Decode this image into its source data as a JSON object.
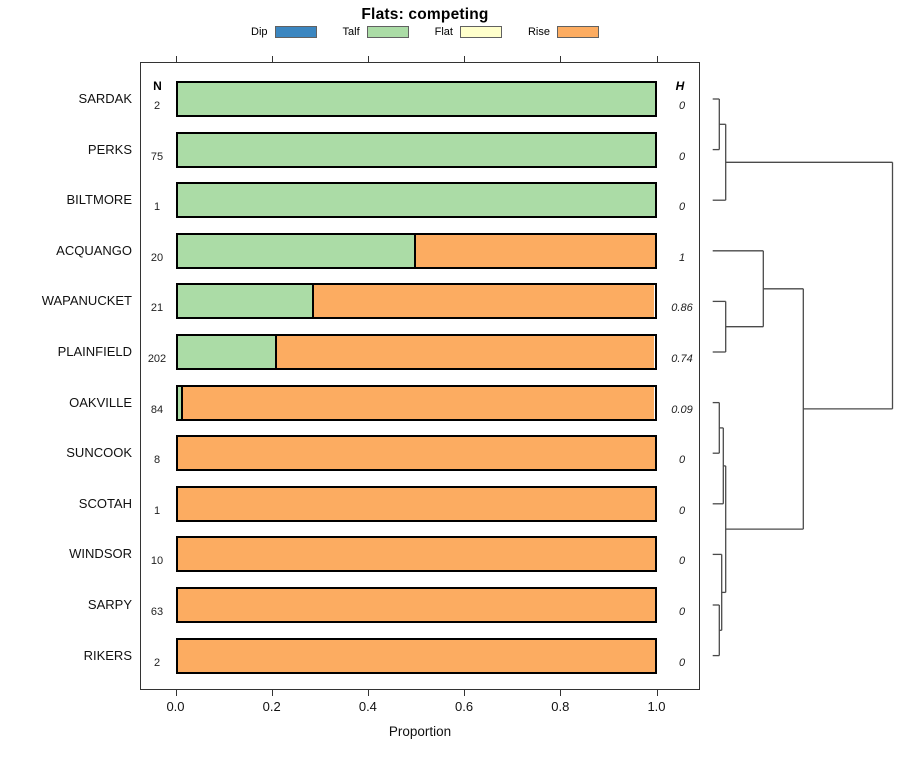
{
  "title": "Flats: competing",
  "xlabel": "Proportion",
  "columns": {
    "n": "N",
    "h": "H"
  },
  "legend": [
    {
      "label": "Dip",
      "color": "#3b86c0"
    },
    {
      "label": "Talf",
      "color": "#abdca6"
    },
    {
      "label": "Flat",
      "color": "#ffffcc"
    },
    {
      "label": "Rise",
      "color": "#fcac61"
    }
  ],
  "chart_data": {
    "type": "bar",
    "orientation": "horizontal",
    "stacked": true,
    "title": "Flats: competing",
    "xlabel": "Proportion",
    "xlim": [
      0,
      1
    ],
    "x_ticks": [
      "0.0",
      "0.2",
      "0.4",
      "0.6",
      "0.8",
      "1.0"
    ],
    "grid": false,
    "legend_position": "top",
    "categories": [
      "SARDAK",
      "PERKS",
      "BILTMORE",
      "ACQUANGO",
      "WAPANUCKET",
      "PLAINFIELD",
      "OAKVILLE",
      "SUNCOOK",
      "SCOTAH",
      "WINDSOR",
      "SARPY",
      "RIKERS"
    ],
    "N": [
      2,
      75,
      1,
      20,
      21,
      202,
      84,
      8,
      1,
      10,
      63,
      2
    ],
    "H": [
      "0",
      "0",
      "0",
      "1",
      "0.86",
      "0.74",
      "0.09",
      "0",
      "0",
      "0",
      "0",
      "0"
    ],
    "series": [
      {
        "name": "Dip",
        "color": "#3b86c0",
        "values": [
          0,
          0,
          0,
          0,
          0,
          0,
          0,
          0,
          0,
          0,
          0,
          0
        ]
      },
      {
        "name": "Talf",
        "color": "#abdca6",
        "values": [
          1,
          1,
          1,
          0.5,
          0.286,
          0.208,
          0.012,
          0,
          0,
          0,
          0,
          0
        ]
      },
      {
        "name": "Flat",
        "color": "#ffffcc",
        "values": [
          0,
          0,
          0,
          0,
          0,
          0,
          0,
          0,
          0,
          0,
          0,
          0
        ]
      },
      {
        "name": "Rise",
        "color": "#fcac61",
        "values": [
          0,
          0,
          0,
          0.5,
          0.714,
          0.792,
          0.988,
          1,
          1,
          1,
          1,
          1
        ]
      }
    ],
    "dendrogram": {
      "structure": "((SARDAK,PERKS),BILTMORE) | ((ACQUANGO,(WAPANUCKET,PLAINFIELD)),(((OAKVILLE,SUNCOOK),SCOTAH),(WINDSOR,(SARPY,RIKERS))))",
      "segments": [
        [
          712.7,
          99.0,
          719.3,
          99.0
        ],
        [
          712.7,
          149.6,
          719.3,
          149.6
        ],
        [
          719.3,
          99.0,
          719.3,
          149.6
        ],
        [
          719.3,
          124.3,
          725.7,
          124.3
        ],
        [
          712.7,
          200.2,
          725.7,
          200.2
        ],
        [
          725.7,
          124.3,
          725.7,
          200.2
        ],
        [
          725.7,
          162.3,
          892.5,
          162.3
        ],
        [
          892.5,
          162.3,
          892.5,
          408.9
        ],
        [
          803.3,
          408.9,
          892.5,
          408.9
        ],
        [
          712.7,
          250.8,
          763.3,
          250.8
        ],
        [
          712.7,
          301.4,
          725.7,
          301.4
        ],
        [
          712.7,
          352.0,
          725.7,
          352.0
        ],
        [
          725.7,
          301.4,
          725.7,
          352.0
        ],
        [
          725.7,
          326.7,
          763.3,
          326.7
        ],
        [
          763.3,
          250.8,
          763.3,
          326.7
        ],
        [
          763.3,
          288.8,
          803.3,
          288.8
        ],
        [
          712.7,
          402.6,
          719.3,
          402.6
        ],
        [
          712.7,
          453.2,
          719.3,
          453.2
        ],
        [
          719.3,
          402.6,
          719.3,
          453.2
        ],
        [
          719.3,
          427.9,
          723.3,
          427.9
        ],
        [
          712.7,
          503.8,
          723.3,
          503.8
        ],
        [
          723.3,
          427.9,
          723.3,
          503.8
        ],
        [
          723.3,
          465.9,
          725.7,
          465.9
        ],
        [
          712.7,
          554.4,
          721.7,
          554.4
        ],
        [
          712.7,
          605.0,
          719.3,
          605.0
        ],
        [
          712.7,
          655.6,
          719.3,
          655.6
        ],
        [
          719.3,
          605.0,
          719.3,
          655.6
        ],
        [
          719.3,
          630.3,
          721.7,
          630.3
        ],
        [
          721.7,
          554.4,
          721.7,
          630.3
        ],
        [
          721.7,
          592.4,
          725.7,
          592.4
        ],
        [
          725.7,
          465.9,
          725.7,
          592.4
        ],
        [
          725.7,
          529.1,
          803.3,
          529.1
        ],
        [
          803.3,
          288.8,
          803.3,
          529.1
        ]
      ]
    }
  }
}
